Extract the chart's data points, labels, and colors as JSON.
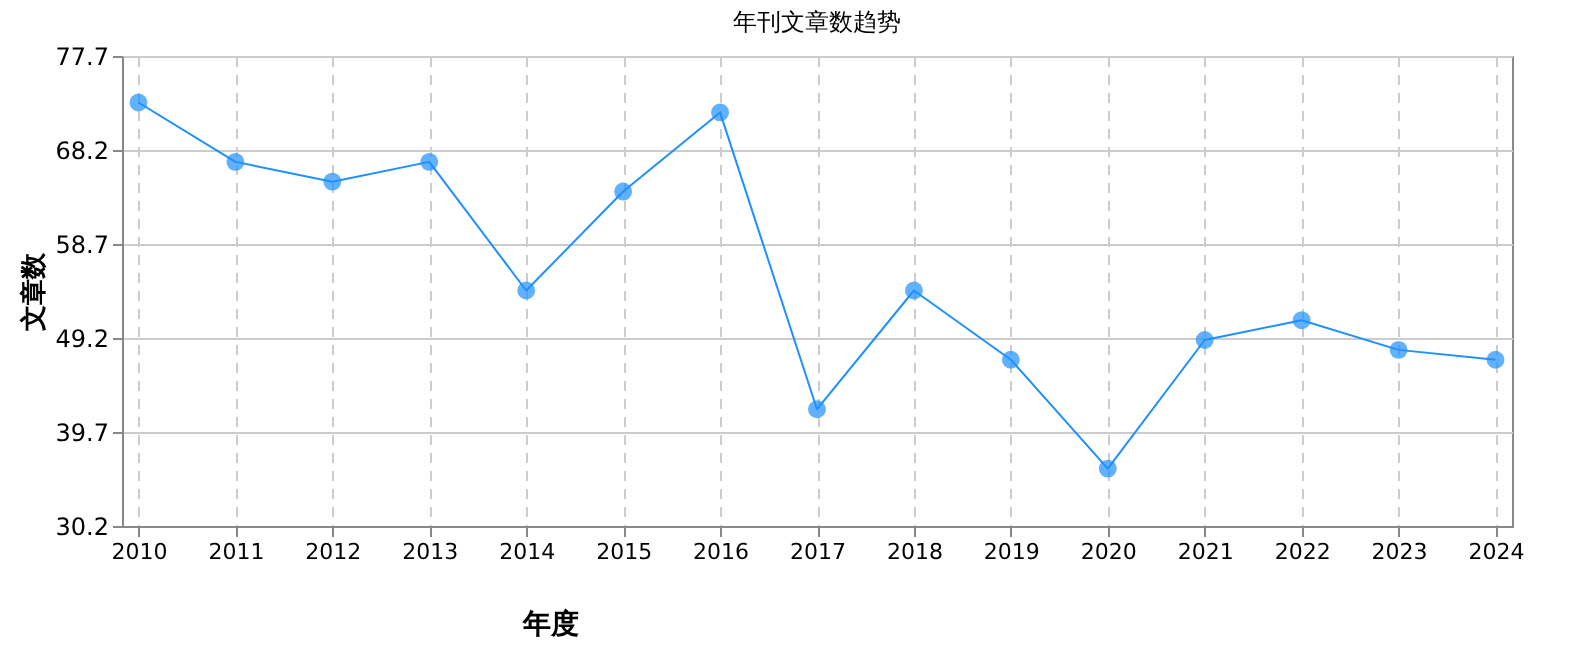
{
  "chart_data": {
    "type": "line",
    "title": "年刊文章数趋势",
    "xlabel": "年度",
    "ylabel": "文章数",
    "categories": [
      "2010",
      "2011",
      "2012",
      "2013",
      "2014",
      "2015",
      "2016",
      "2017",
      "2018",
      "2019",
      "2020",
      "2021",
      "2022",
      "2023",
      "2024"
    ],
    "series": [
      {
        "color": "#1e90ff",
        "values": [
          73,
          67,
          65,
          67,
          54,
          64,
          72,
          42,
          54,
          47,
          36,
          49,
          51,
          48,
          47
        ]
      }
    ],
    "ylim": [
      30.2,
      77.7
    ],
    "yticks": [
      30.2,
      39.7,
      49.2,
      58.7,
      68.2,
      77.7
    ],
    "grid": true,
    "legend": false,
    "marker": "circle",
    "line_style": "solid"
  }
}
